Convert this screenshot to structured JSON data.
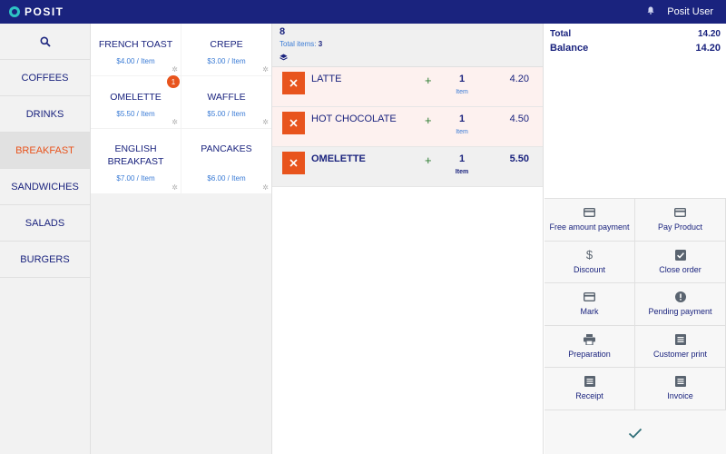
{
  "app": {
    "brand": "POSIT",
    "user": "Posit User"
  },
  "colors": {
    "primary": "#1a237e",
    "accent": "#e8541d",
    "teal": "#2ec4c4",
    "green": "#2e7d32",
    "link": "#3a7bd5"
  },
  "sidebar": {
    "search_icon": "search-icon",
    "categories": [
      {
        "label": "COFFEES",
        "active": false
      },
      {
        "label": "DRINKS",
        "active": false
      },
      {
        "label": "BREAKFAST",
        "active": true
      },
      {
        "label": "SANDWICHES",
        "active": false
      },
      {
        "label": "SALADS",
        "active": false
      },
      {
        "label": "BURGERS",
        "active": false
      }
    ]
  },
  "products": [
    {
      "name": "FRENCH TOAST",
      "price": "$4.00 / Item"
    },
    {
      "name": "CREPE",
      "price": "$3.00 / Item"
    },
    {
      "name": "OMELETTE",
      "price": "$5.50 / Item",
      "badge": "1"
    },
    {
      "name": "WAFFLE",
      "price": "$5.00 / Item"
    },
    {
      "name": "ENGLISH\nBREAKFAST",
      "price": "$7.00 / Item"
    },
    {
      "name": "PANCAKES",
      "price": "$6.00 / Item"
    }
  ],
  "order": {
    "number": "8",
    "total_items_label": "Total items:",
    "total_items": "3",
    "lines": [
      {
        "name": "LATTE",
        "qty": "1",
        "unit": "Item",
        "price": "4.20"
      },
      {
        "name": "HOT CHOCOLATE",
        "qty": "1",
        "unit": "Item",
        "price": "4.50"
      },
      {
        "name": "OMELETTE",
        "qty": "1",
        "unit": "Item",
        "price": "5.50"
      }
    ]
  },
  "totals": {
    "total_label": "Total",
    "total": "14.20",
    "balance_label": "Balance",
    "balance": "14.20"
  },
  "actions": [
    {
      "label": "Free amount payment",
      "icon": "card-icon"
    },
    {
      "label": "Pay Product",
      "icon": "card-icon"
    },
    {
      "label": "Discount",
      "icon": "dollar-icon"
    },
    {
      "label": "Close order",
      "icon": "checkbox-icon"
    },
    {
      "label": "Mark",
      "icon": "card-icon"
    },
    {
      "label": "Pending payment",
      "icon": "alert-icon"
    },
    {
      "label": "Preparation",
      "icon": "printer-icon"
    },
    {
      "label": "Customer print",
      "icon": "document-icon"
    },
    {
      "label": "Receipt",
      "icon": "document-icon"
    },
    {
      "label": "Invoice",
      "icon": "document-icon"
    }
  ]
}
